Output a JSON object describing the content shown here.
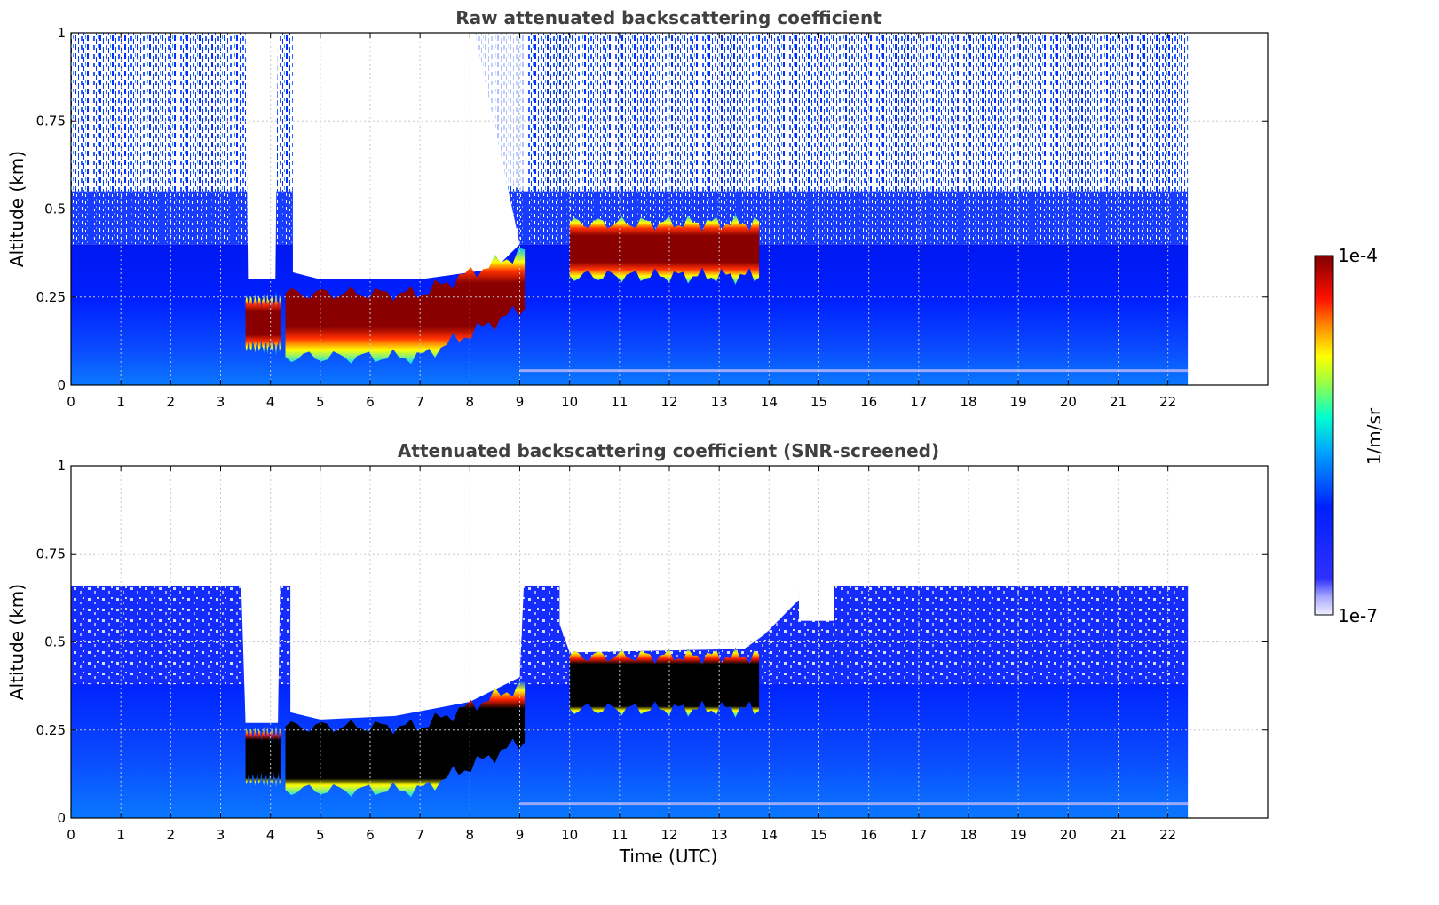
{
  "chart_data": [
    {
      "type": "heatmap",
      "title": "Raw attenuated backscattering coefficient",
      "xlabel": "",
      "ylabel": "Altitude (km)",
      "xlim": [
        0,
        24
      ],
      "ylim": [
        0,
        1
      ],
      "xticks": [
        0,
        1,
        2,
        3,
        4,
        5,
        6,
        7,
        8,
        9,
        10,
        11,
        12,
        13,
        14,
        15,
        16,
        17,
        18,
        19,
        20,
        21,
        22
      ],
      "xtick_labels": [
        "0",
        "1",
        "2",
        "3",
        "4",
        "5",
        "6",
        "7",
        "8",
        "9",
        "10",
        "11",
        "12",
        "13",
        "14",
        "15",
        "16",
        "17",
        "18",
        "19",
        "20",
        "21",
        "22"
      ],
      "yticks": [
        0,
        0.25,
        0.5,
        0.75,
        1
      ],
      "ytick_labels": [
        "0",
        "0.25",
        "0.5",
        "0.75",
        "1"
      ],
      "grid": true,
      "data_end_time": 22.4,
      "layers": [
        {
          "start": 3.5,
          "end": 4.2,
          "base": 0.11,
          "top": 0.24
        },
        {
          "start": 4.3,
          "end": 9.1,
          "base": 0.08,
          "top": 0.26
        },
        {
          "start": 10.0,
          "end": 13.8,
          "base": 0.31,
          "top": 0.46
        }
      ]
    },
    {
      "type": "heatmap",
      "title": "Attenuated backscattering coefficient (SNR-screened)",
      "xlabel": "Time (UTC)",
      "ylabel": "Altitude (km)",
      "xlim": [
        0,
        24
      ],
      "ylim": [
        0,
        1
      ],
      "xticks": [
        0,
        1,
        2,
        3,
        4,
        5,
        6,
        7,
        8,
        9,
        10,
        11,
        12,
        13,
        14,
        15,
        16,
        17,
        18,
        19,
        20,
        21,
        22
      ],
      "xtick_labels": [
        "0",
        "1",
        "2",
        "3",
        "4",
        "5",
        "6",
        "7",
        "8",
        "9",
        "10",
        "11",
        "12",
        "13",
        "14",
        "15",
        "16",
        "17",
        "18",
        "19",
        "20",
        "21",
        "22"
      ],
      "yticks": [
        0,
        0.25,
        0.5,
        0.75,
        1
      ],
      "ytick_labels": [
        "0",
        "0.25",
        "0.5",
        "0.75",
        "1"
      ],
      "grid": true,
      "data_end_time": 22.4,
      "boundary_layer_top": 0.66
    }
  ],
  "colorbar": {
    "label": "1/m/sr",
    "max_label": "1e-4",
    "min_label": "1e-7",
    "colormap": [
      "#e8e8ff",
      "#a0a0ff",
      "#0000ff",
      "#0080ff",
      "#00ffff",
      "#80ff80",
      "#ffff00",
      "#ff8000",
      "#ff0000",
      "#800000"
    ]
  }
}
